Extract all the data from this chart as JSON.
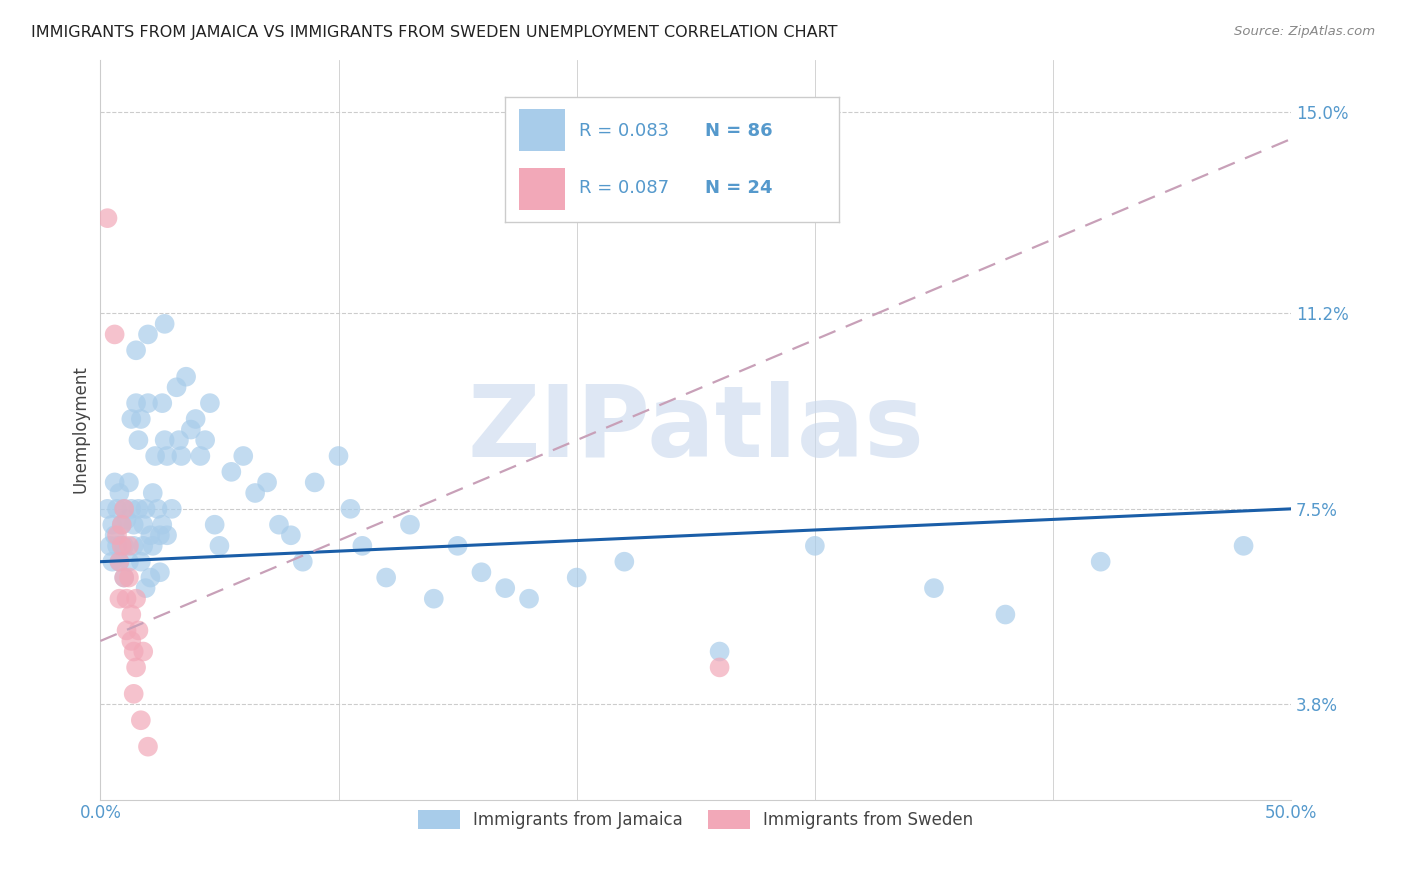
{
  "title": "IMMIGRANTS FROM JAMAICA VS IMMIGRANTS FROM SWEDEN UNEMPLOYMENT CORRELATION CHART",
  "source": "Source: ZipAtlas.com",
  "ylabel": "Unemployment",
  "xlim": [
    0.0,
    0.5
  ],
  "ylim": [
    0.02,
    0.16
  ],
  "yticks": [
    0.038,
    0.075,
    0.112,
    0.15
  ],
  "ytick_labels": [
    "3.8%",
    "7.5%",
    "11.2%",
    "15.0%"
  ],
  "xticks": [
    0.0,
    0.1,
    0.2,
    0.3,
    0.4,
    0.5
  ],
  "xtick_labels": [
    "0.0%",
    "",
    "",
    "",
    "",
    "50.0%"
  ],
  "jamaica_color": "#A8CCEA",
  "sweden_color": "#F2A8B8",
  "jamaica_R": 0.083,
  "jamaica_N": 86,
  "sweden_R": 0.087,
  "sweden_N": 24,
  "jamaica_line_color": "#1A5EA8",
  "sweden_line_color": "#C8A0B8",
  "background_color": "#FFFFFF",
  "grid_color": "#CCCCCC",
  "watermark": "ZIPatlas",
  "watermark_color": "#C8D8EE",
  "legend_label_1": "Immigrants from Jamaica",
  "legend_label_2": "Immigrants from Sweden",
  "title_color": "#222222",
  "axis_label_color": "#5599CC",
  "jamaica_points": [
    [
      0.003,
      0.075
    ],
    [
      0.004,
      0.068
    ],
    [
      0.005,
      0.072
    ],
    [
      0.005,
      0.065
    ],
    [
      0.006,
      0.08
    ],
    [
      0.006,
      0.07
    ],
    [
      0.007,
      0.075
    ],
    [
      0.007,
      0.068
    ],
    [
      0.008,
      0.078
    ],
    [
      0.008,
      0.065
    ],
    [
      0.009,
      0.072
    ],
    [
      0.009,
      0.068
    ],
    [
      0.01,
      0.075
    ],
    [
      0.01,
      0.068
    ],
    [
      0.01,
      0.062
    ],
    [
      0.011,
      0.073
    ],
    [
      0.012,
      0.08
    ],
    [
      0.012,
      0.065
    ],
    [
      0.013,
      0.092
    ],
    [
      0.013,
      0.075
    ],
    [
      0.014,
      0.072
    ],
    [
      0.014,
      0.068
    ],
    [
      0.015,
      0.105
    ],
    [
      0.015,
      0.095
    ],
    [
      0.016,
      0.088
    ],
    [
      0.016,
      0.075
    ],
    [
      0.017,
      0.065
    ],
    [
      0.017,
      0.092
    ],
    [
      0.018,
      0.068
    ],
    [
      0.018,
      0.072
    ],
    [
      0.019,
      0.06
    ],
    [
      0.019,
      0.075
    ],
    [
      0.02,
      0.108
    ],
    [
      0.02,
      0.095
    ],
    [
      0.021,
      0.07
    ],
    [
      0.021,
      0.062
    ],
    [
      0.022,
      0.078
    ],
    [
      0.022,
      0.068
    ],
    [
      0.023,
      0.085
    ],
    [
      0.024,
      0.075
    ],
    [
      0.025,
      0.07
    ],
    [
      0.025,
      0.063
    ],
    [
      0.026,
      0.095
    ],
    [
      0.026,
      0.072
    ],
    [
      0.027,
      0.11
    ],
    [
      0.027,
      0.088
    ],
    [
      0.028,
      0.085
    ],
    [
      0.028,
      0.07
    ],
    [
      0.03,
      0.075
    ],
    [
      0.032,
      0.098
    ],
    [
      0.033,
      0.088
    ],
    [
      0.034,
      0.085
    ],
    [
      0.036,
      0.1
    ],
    [
      0.038,
      0.09
    ],
    [
      0.04,
      0.092
    ],
    [
      0.042,
      0.085
    ],
    [
      0.044,
      0.088
    ],
    [
      0.046,
      0.095
    ],
    [
      0.048,
      0.072
    ],
    [
      0.05,
      0.068
    ],
    [
      0.055,
      0.082
    ],
    [
      0.06,
      0.085
    ],
    [
      0.065,
      0.078
    ],
    [
      0.07,
      0.08
    ],
    [
      0.075,
      0.072
    ],
    [
      0.08,
      0.07
    ],
    [
      0.085,
      0.065
    ],
    [
      0.09,
      0.08
    ],
    [
      0.1,
      0.085
    ],
    [
      0.105,
      0.075
    ],
    [
      0.11,
      0.068
    ],
    [
      0.12,
      0.062
    ],
    [
      0.13,
      0.072
    ],
    [
      0.14,
      0.058
    ],
    [
      0.15,
      0.068
    ],
    [
      0.16,
      0.063
    ],
    [
      0.17,
      0.06
    ],
    [
      0.18,
      0.058
    ],
    [
      0.2,
      0.062
    ],
    [
      0.22,
      0.065
    ],
    [
      0.26,
      0.048
    ],
    [
      0.3,
      0.068
    ],
    [
      0.35,
      0.06
    ],
    [
      0.38,
      0.055
    ],
    [
      0.42,
      0.065
    ],
    [
      0.48,
      0.068
    ]
  ],
  "sweden_points": [
    [
      0.003,
      0.13
    ],
    [
      0.006,
      0.108
    ],
    [
      0.007,
      0.07
    ],
    [
      0.008,
      0.065
    ],
    [
      0.008,
      0.058
    ],
    [
      0.009,
      0.072
    ],
    [
      0.009,
      0.068
    ],
    [
      0.01,
      0.075
    ],
    [
      0.01,
      0.062
    ],
    [
      0.011,
      0.058
    ],
    [
      0.011,
      0.052
    ],
    [
      0.012,
      0.068
    ],
    [
      0.012,
      0.062
    ],
    [
      0.013,
      0.05
    ],
    [
      0.013,
      0.055
    ],
    [
      0.014,
      0.048
    ],
    [
      0.014,
      0.04
    ],
    [
      0.015,
      0.058
    ],
    [
      0.015,
      0.045
    ],
    [
      0.016,
      0.052
    ],
    [
      0.017,
      0.035
    ],
    [
      0.018,
      0.048
    ],
    [
      0.02,
      0.03
    ],
    [
      0.26,
      0.045
    ]
  ],
  "jamaica_trend": [
    0.0,
    0.5,
    0.065,
    0.075
  ],
  "sweden_trend": [
    0.0,
    0.5,
    0.05,
    0.145
  ]
}
